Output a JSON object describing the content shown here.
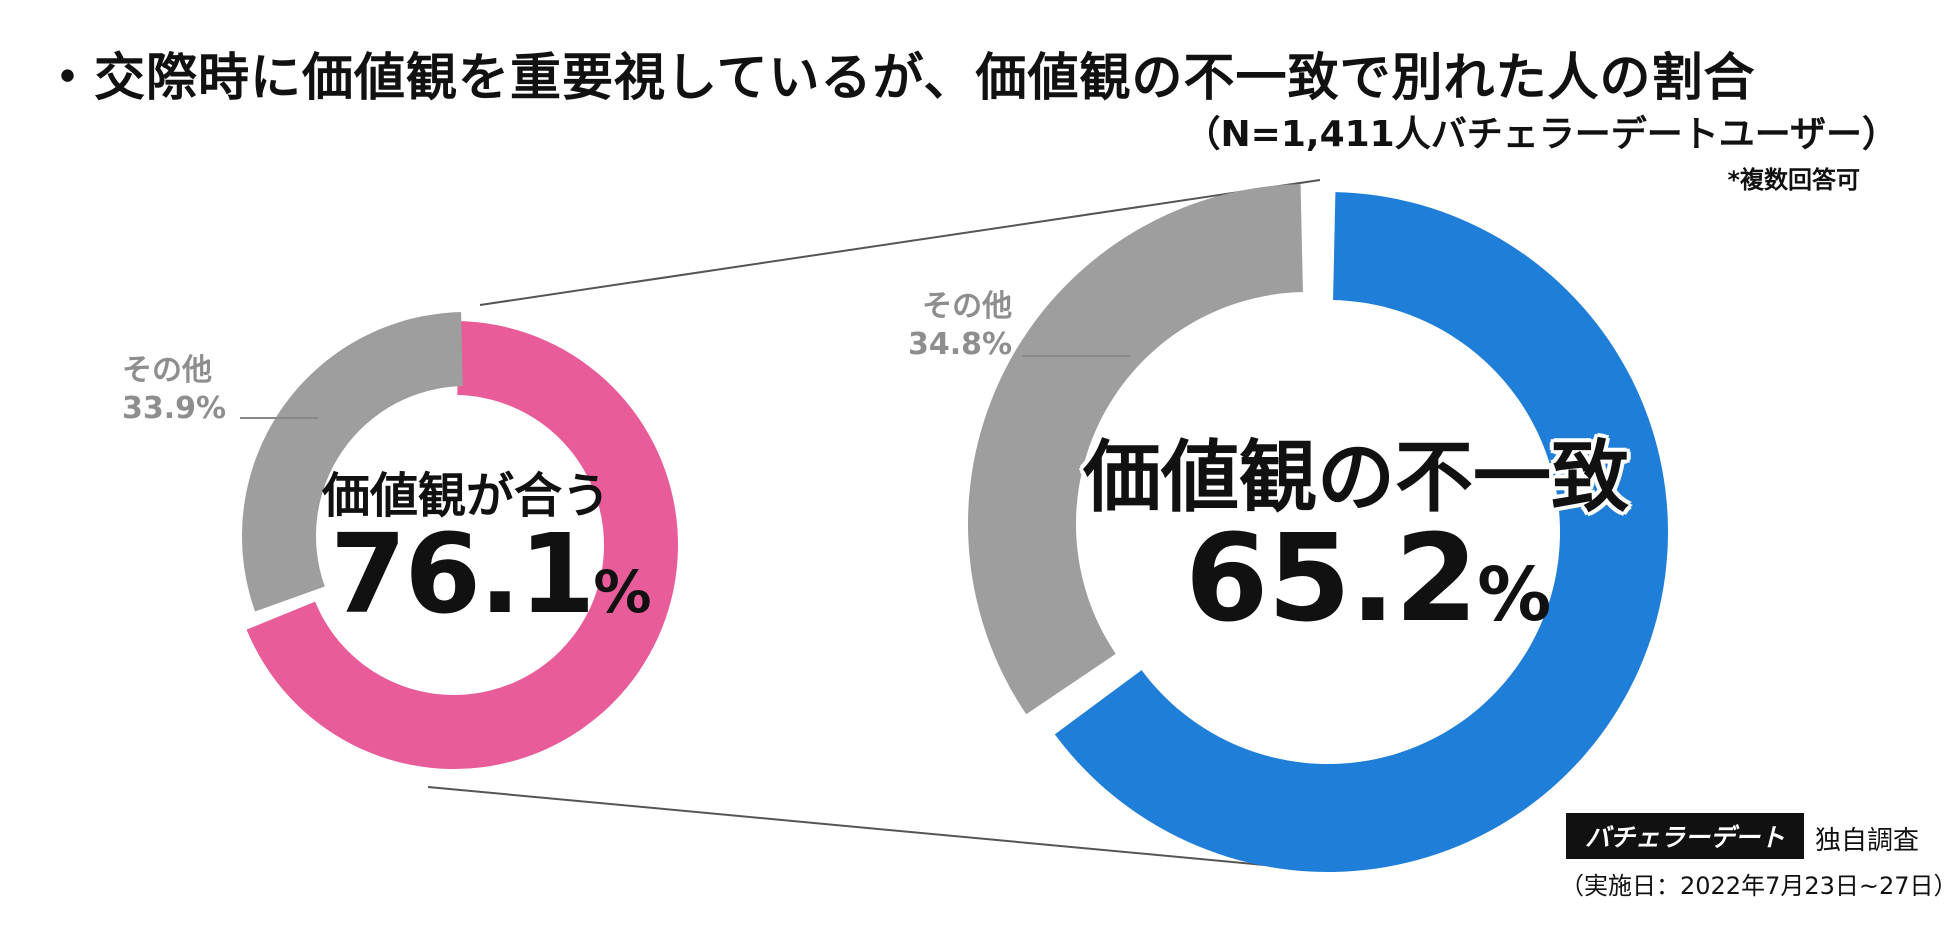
{
  "title": "・交際時に価値観を重要視しているが、価値観の不一致で別れた人の割合",
  "sample_note": "（N=1,411人バチェラーデートユーザー）",
  "answer_note": "*複数回答可",
  "brand": {
    "name": "バチェラーデート",
    "suffix": "独自調査",
    "date": "（実施日：2022年7月23日~27日）"
  },
  "colors": {
    "pink": "#E85C99",
    "blue": "#1F7FD8",
    "gray": "#9E9E9E",
    "connector": "#555555"
  },
  "chart_data": [
    {
      "type": "pie",
      "subtype": "donut",
      "slices": [
        {
          "label": "価値観が合う",
          "value": 76.1,
          "color": "#E85C99"
        },
        {
          "label": "その他",
          "value": 33.9,
          "color": "#9E9E9E"
        }
      ],
      "center_category": "価値観が合う",
      "center_value": "76.1",
      "center_unit": "%",
      "other_label": "その他",
      "other_value": "33.9%"
    },
    {
      "type": "pie",
      "subtype": "donut",
      "slices": [
        {
          "label": "価値観の不一致",
          "value": 65.2,
          "color": "#1F7FD8"
        },
        {
          "label": "その他",
          "value": 34.8,
          "color": "#9E9E9E"
        }
      ],
      "center_category": "価値観の不一致",
      "center_value": "65.2",
      "center_unit": "%",
      "other_label": "その他",
      "other_value": "34.8%"
    }
  ]
}
